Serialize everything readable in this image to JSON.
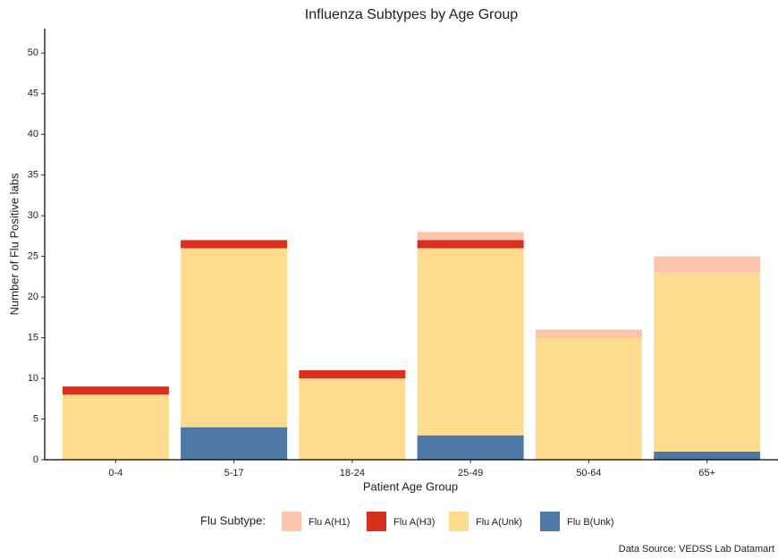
{
  "chart_data": {
    "type": "stacked-bar",
    "title": "Influenza Subtypes by Age Group",
    "x_label": "Patient Age Group",
    "y_label": "Number of Flu Positive labs",
    "legend_title": "Flu Subtype:",
    "caption": "Data Source: VEDSS Lab Datamart",
    "categories": [
      "0-4",
      "5-17",
      "18-24",
      "25-49",
      "50-64",
      "65+"
    ],
    "series": [
      {
        "name": "Flu A(H1)",
        "color": "#fcc5aa",
        "values": [
          0,
          0,
          0,
          1,
          1,
          2
        ]
      },
      {
        "name": "Flu A(H3)",
        "color": "#d7301f",
        "values": [
          1,
          1,
          1,
          1,
          0,
          0
        ]
      },
      {
        "name": "Flu A(Unk)",
        "color": "#fddc8f",
        "values": [
          8,
          22,
          10,
          23,
          15,
          22
        ]
      },
      {
        "name": "Flu B(Unk)",
        "color": "#4e79a7",
        "values": [
          0,
          4,
          0,
          3,
          0,
          1
        ]
      }
    ],
    "ylim": [
      0,
      53
    ],
    "yticks": [
      0,
      5,
      10,
      15,
      20,
      25,
      30,
      35,
      40,
      45,
      50
    ],
    "grid": false,
    "legend_position": "bottom"
  }
}
